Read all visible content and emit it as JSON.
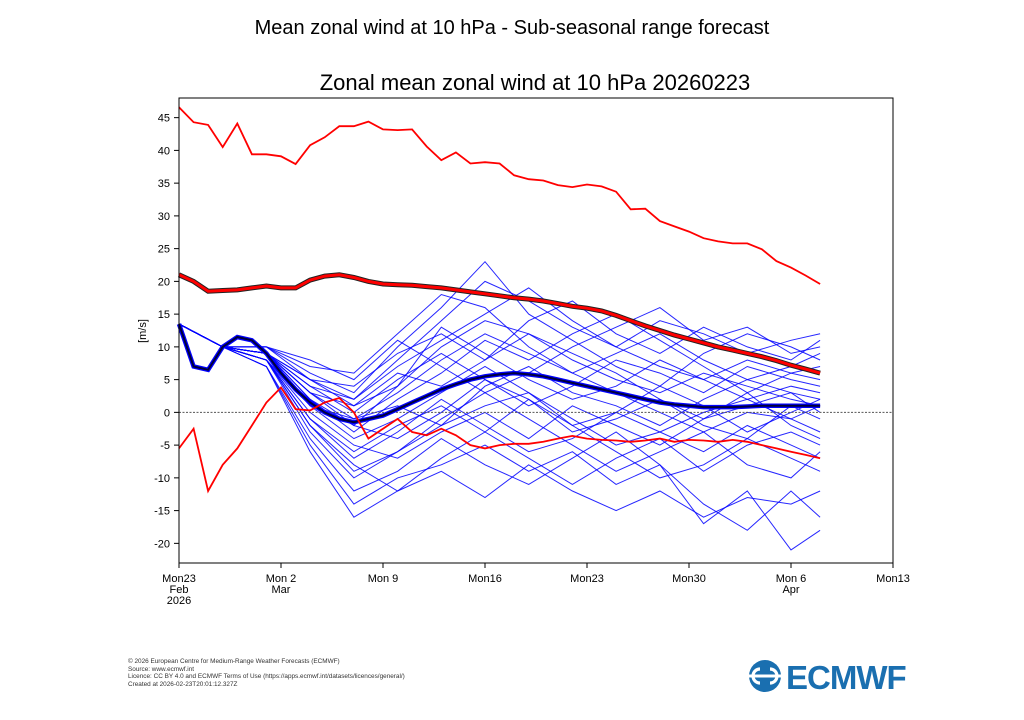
{
  "page": {
    "title": "Mean zonal wind at 10 hPa - Sub-seasonal range forecast",
    "footer": [
      "© 2026 European Centre for Medium-Range Weather Forecasts (ECMWF)",
      "Source: www.ecmwf.int",
      "Licence: CC BY 4.0 and ECMWF Terms of Use (https://apps.ecmwf.int/datasets/licences/general/)",
      "Created at 2026-02-23T20:01:12.327Z"
    ],
    "logo_text": "ECMWF",
    "logo_color": "#1a6fb0"
  },
  "chart_data": {
    "type": "line",
    "title": "Zonal mean zonal wind at 10 hPa 20260223",
    "ylabel": "[m/s]",
    "xlabel": "",
    "x_unit": "days since forecast start 2026-02-23",
    "xlim": [
      "2026-02-23",
      "2026-04-13"
    ],
    "ylim": [
      -23,
      48
    ],
    "yticks": [
      -20,
      -15,
      -10,
      -5,
      0,
      5,
      10,
      15,
      20,
      25,
      30,
      35,
      40,
      45
    ],
    "xticks": [
      {
        "date": "2026-02-23",
        "lines": [
          "Mon23",
          "Feb",
          "2026"
        ]
      },
      {
        "date": "2026-03-02",
        "lines": [
          "Mon 2",
          "Mar"
        ]
      },
      {
        "date": "2026-03-09",
        "lines": [
          "Mon 9"
        ]
      },
      {
        "date": "2026-03-16",
        "lines": [
          "Mon16"
        ]
      },
      {
        "date": "2026-03-23",
        "lines": [
          "Mon23"
        ]
      },
      {
        "date": "2026-03-30",
        "lines": [
          "Mon30"
        ]
      },
      {
        "date": "2026-04-06",
        "lines": [
          "Mon 6",
          "Apr"
        ]
      },
      {
        "date": "2026-04-13",
        "lines": [
          "Mon13"
        ]
      }
    ],
    "zero_line": true,
    "colors": {
      "ensemble": "#0000ff",
      "ensemble_mean": "#00003a",
      "climate": "#ff0000",
      "climate_edge": "#222222",
      "zero": "#555555"
    },
    "daily_start": "2026-02-23",
    "climate_max": [
      46.6,
      44.3,
      43.9,
      40.5,
      44.1,
      39.4,
      39.4,
      39.1,
      37.9,
      40.8,
      42.0,
      43.7,
      43.7,
      44.4,
      43.2,
      43.1,
      43.2,
      40.6,
      38.5,
      39.7,
      38.0,
      38.2,
      38.0,
      36.2,
      35.6,
      35.4,
      34.7,
      34.4,
      34.8,
      34.5,
      33.7,
      31.0,
      31.1,
      29.2,
      28.4,
      27.6,
      26.6,
      26.1,
      25.8,
      25.8,
      24.9,
      23.1,
      22.1,
      20.9,
      19.6
    ],
    "climate_mean": [
      21,
      20,
      18.5,
      18.6,
      18.7,
      19,
      19.3,
      19,
      19,
      20.2,
      20.8,
      21,
      20.6,
      20,
      19.6,
      19.5,
      19.4,
      19.2,
      19,
      18.7,
      18.4,
      18.1,
      17.8,
      17.5,
      17.3,
      17.0,
      16.6,
      16.2,
      15.9,
      15.5,
      14.8,
      14,
      13.2,
      12.5,
      11.8,
      11.2,
      10.6,
      10,
      9.5,
      9,
      8.5,
      7.9,
      7.2,
      6.6,
      6.0
    ],
    "climate_min": [
      -5.5,
      -2.5,
      -12,
      -8,
      -5.5,
      -2,
      1.5,
      3.8,
      0.5,
      0.3,
      1.5,
      2.2,
      0,
      -4,
      -2.5,
      -1,
      -3,
      -3.5,
      -2.5,
      -3.5,
      -5,
      -5.5,
      -5,
      -4.8,
      -4.8,
      -4.5,
      -4,
      -3.6,
      -4,
      -4.2,
      -4.3,
      -4.5,
      -4.3,
      -4,
      -4.5,
      -4.2,
      -4.3,
      -4.5,
      -4.2,
      -4.5,
      -5,
      -5.5,
      -6,
      -6.5,
      -7
    ],
    "ensemble_mean": [
      13.5,
      7,
      6.5,
      10,
      11.5,
      11,
      9,
      6,
      3.5,
      1.5,
      0,
      -1,
      -1.5,
      -1,
      -0.5,
      0.5,
      1.5,
      2.5,
      3.5,
      4.3,
      5,
      5.5,
      5.8,
      6,
      5.8,
      5.5,
      5,
      4.5,
      4,
      3.5,
      3,
      2.5,
      2,
      1.5,
      1.2,
      1,
      0.8,
      0.8,
      0.8,
      0.9,
      1,
      1,
      1,
      1,
      1
    ],
    "member_days": [
      0,
      3,
      6,
      9,
      12,
      15,
      18,
      21,
      24,
      27,
      30,
      33,
      36,
      39,
      42,
      44
    ],
    "members": [
      [
        13.5,
        10,
        9,
        3,
        -2,
        4,
        10,
        14,
        12,
        8,
        5,
        3,
        6,
        4,
        2,
        1
      ],
      [
        13.5,
        10,
        8,
        -2,
        -9,
        -6,
        -2,
        1,
        3,
        -1,
        -5,
        -3,
        0,
        2,
        -1,
        -3
      ],
      [
        13.5,
        10,
        10,
        7,
        6,
        12,
        18,
        16,
        10,
        6,
        9,
        12,
        8,
        5,
        7,
        9
      ],
      [
        13.5,
        10,
        7,
        -5,
        -14,
        -10,
        -8,
        -5,
        -9,
        -6,
        -11,
        -8,
        -14,
        -18,
        -12,
        -16
      ],
      [
        13.5,
        10,
        9,
        5,
        2,
        8,
        14,
        20,
        17,
        13,
        10,
        14,
        12,
        9,
        11,
        12
      ],
      [
        13.5,
        10,
        8,
        1,
        -4,
        -1,
        3,
        7,
        3,
        -2,
        0,
        4,
        1,
        -3,
        0,
        2
      ],
      [
        13.5,
        10,
        9,
        4,
        0,
        5,
        9,
        5,
        1,
        4,
        8,
        6,
        3,
        7,
        5,
        4
      ],
      [
        13.5,
        10,
        8,
        -1,
        -7,
        -3,
        2,
        -2,
        -6,
        -4,
        0,
        -3,
        -6,
        -2,
        -5,
        -7
      ],
      [
        13.5,
        10,
        10,
        6,
        3,
        10,
        16,
        23,
        15,
        11,
        7,
        4,
        9,
        12,
        10,
        8
      ],
      [
        13.5,
        10,
        7,
        -4,
        -12,
        -9,
        -4,
        -8,
        -11,
        -7,
        -3,
        -8,
        -17,
        -12,
        -21,
        -18
      ],
      [
        13.5,
        10,
        9,
        2,
        -3,
        2,
        6,
        11,
        8,
        12,
        15,
        11,
        7,
        3,
        6,
        5
      ],
      [
        13.5,
        10,
        8,
        0,
        -5,
        -7,
        -3,
        0,
        -4,
        1,
        -2,
        -5,
        -1,
        3,
        -2,
        -4
      ],
      [
        13.5,
        10,
        9,
        3,
        1,
        6,
        4,
        8,
        12,
        9,
        6,
        2,
        -1,
        1,
        3,
        0
      ],
      [
        13.5,
        10,
        8,
        -3,
        -10,
        -6,
        -1,
        3,
        -1,
        -5,
        -9,
        -6,
        -3,
        -8,
        -10,
        -6
      ],
      [
        13.5,
        10,
        10,
        5,
        4,
        9,
        12,
        8,
        14,
        17,
        12,
        9,
        13,
        10,
        8,
        11
      ],
      [
        13.5,
        10,
        9,
        1,
        -1,
        1,
        -2,
        4,
        7,
        3,
        1,
        -2,
        2,
        5,
        3,
        2
      ],
      [
        13.5,
        10,
        8,
        -2,
        -8,
        -12,
        -7,
        -3,
        2,
        -2,
        -6,
        -10,
        -8,
        -4,
        -7,
        -9
      ],
      [
        13.5,
        10,
        9,
        4,
        2,
        7,
        11,
        15,
        19,
        14,
        10,
        7,
        5,
        8,
        6,
        7
      ],
      [
        13.5,
        10,
        8,
        -1,
        -6,
        -2,
        1,
        -3,
        -7,
        -11,
        -7,
        -4,
        -9,
        -5,
        -3,
        -5
      ],
      [
        13.5,
        10,
        9,
        3,
        -1,
        3,
        8,
        12,
        9,
        6,
        3,
        0,
        -3,
        0,
        -1,
        1
      ],
      [
        13.5,
        10,
        10,
        8,
        5,
        11,
        7,
        3,
        6,
        10,
        13,
        16,
        11,
        13,
        9,
        10
      ],
      [
        13.5,
        10,
        7,
        -6,
        -16,
        -12,
        -9,
        -13,
        -8,
        -12,
        -15,
        -12,
        -16,
        -13,
        -14,
        -12
      ],
      [
        13.5,
        10,
        9,
        2,
        -2,
        -4,
        0,
        5,
        2,
        -3,
        -1,
        2,
        -2,
        -4,
        1,
        -1
      ],
      [
        13.5,
        10,
        9,
        5,
        1,
        4,
        13,
        9,
        5,
        2,
        4,
        8,
        5,
        2,
        4,
        3
      ]
    ]
  }
}
